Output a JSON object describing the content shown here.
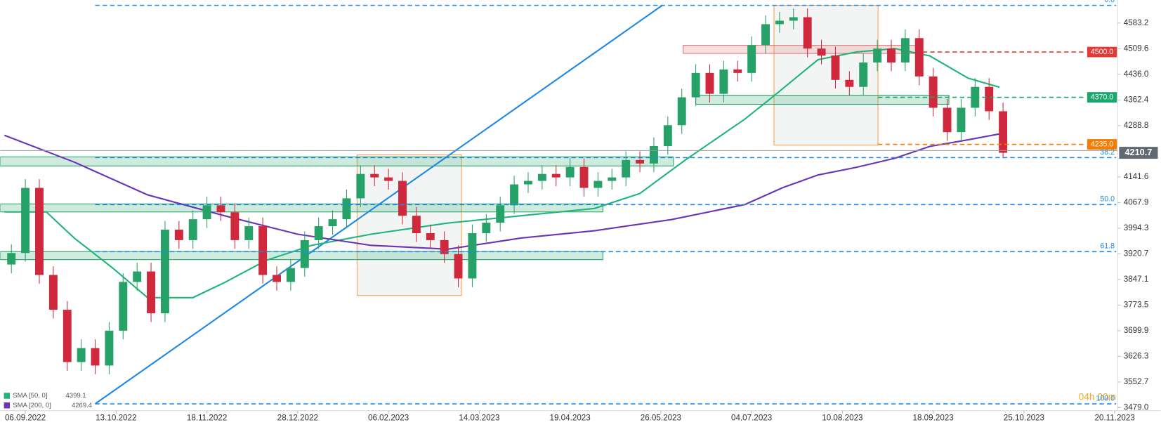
{
  "chart_data": {
    "type": "candlestick",
    "xlim": [
      -7.2,
      312.4
    ],
    "ylim": [
      3470.5,
      4649.4
    ],
    "xticks": [
      {
        "value": 0,
        "label": "06.09.2022"
      },
      {
        "value": 26,
        "label": "13.10.2022"
      },
      {
        "value": 52,
        "label": "18.11.2022"
      },
      {
        "value": 78,
        "label": "28.12.2022"
      },
      {
        "value": 104,
        "label": "06.02.2023"
      },
      {
        "value": 130,
        "label": "14.03.2023"
      },
      {
        "value": 156,
        "label": "19.04.2023"
      },
      {
        "value": 182,
        "label": "26.05.2023"
      },
      {
        "value": 208,
        "label": "04.07.2023"
      },
      {
        "value": 234,
        "label": "10.08.2023"
      },
      {
        "value": 260,
        "label": "18.09.2023"
      },
      {
        "value": 286,
        "label": "25.10.2023"
      },
      {
        "value": 312,
        "label": "20.11.2023"
      }
    ],
    "yticks": [
      4583.2,
      4509.6,
      {
        "value": 4436.0,
        "label": "4436.0"
      },
      4362.4,
      4288.8,
      4141.6,
      4067.9,
      3994.3,
      3920.7,
      3847.1,
      3773.5,
      3699.9,
      3626.3,
      3552.7,
      {
        "value": 3479.0,
        "label": "3479.0"
      }
    ],
    "up_color": "#26a269",
    "down_color": "#d0283c",
    "candles": {
      "x": [
        -4,
        0,
        4,
        8,
        12,
        16,
        20,
        24,
        28,
        32,
        36,
        40,
        44,
        48,
        52,
        56,
        60,
        64,
        68,
        72,
        76,
        80,
        84,
        88,
        92,
        96,
        100,
        104,
        108,
        112,
        116,
        120,
        124,
        128,
        132,
        136,
        140,
        144,
        148,
        152,
        156,
        160,
        164,
        168,
        172,
        176,
        180,
        184,
        188,
        192,
        196,
        200,
        204,
        208,
        212,
        216,
        220,
        224,
        228,
        232,
        236,
        240,
        244,
        248,
        252,
        256,
        260,
        264,
        268,
        272,
        276,
        280
      ],
      "open": [
        3890,
        3923,
        4110,
        3860,
        3760,
        3610,
        3650,
        3600,
        3700,
        3840,
        3870,
        3750,
        3990,
        3960,
        4020,
        4060,
        4040,
        3960,
        4000,
        3860,
        3840,
        3880,
        3960,
        4000,
        4020,
        4080,
        4150,
        4140,
        4130,
        4030,
        3980,
        3960,
        3920,
        3850,
        3980,
        4010,
        4060,
        4120,
        4130,
        4150,
        4140,
        4170,
        4110,
        4130,
        4140,
        4190,
        4180,
        4230,
        4290,
        4370,
        4440,
        4380,
        4450,
        4440,
        4520,
        4580,
        4590,
        4600,
        4510,
        4490,
        4420,
        4400,
        4470,
        4510,
        4470,
        4540,
        4430,
        4340,
        4270,
        4340,
        4400,
        4330
      ],
      "high": [
        3948,
        4135,
        4135,
        3885,
        3785,
        3675,
        3675,
        3725,
        3865,
        3895,
        3895,
        4015,
        4015,
        4045,
        4085,
        4085,
        4065,
        4025,
        4025,
        3885,
        3905,
        3985,
        4025,
        4045,
        4105,
        4175,
        4175,
        4165,
        4155,
        4055,
        4005,
        3985,
        3945,
        4005,
        4035,
        4085,
        4145,
        4155,
        4175,
        4175,
        4195,
        4195,
        4155,
        4165,
        4215,
        4215,
        4255,
        4315,
        4395,
        4465,
        4465,
        4475,
        4475,
        4545,
        4605,
        4615,
        4625,
        4625,
        4535,
        4515,
        4445,
        4495,
        4535,
        4535,
        4565,
        4565,
        4455,
        4365,
        4365,
        4425,
        4425,
        4355
      ],
      "low": [
        3865,
        3898,
        3835,
        3735,
        3585,
        3585,
        3575,
        3575,
        3675,
        3815,
        3725,
        3725,
        3935,
        3935,
        3995,
        4015,
        3935,
        3935,
        3835,
        3815,
        3815,
        3855,
        3935,
        3975,
        3995,
        4055,
        4115,
        4105,
        4005,
        3955,
        3935,
        3895,
        3825,
        3825,
        3955,
        3985,
        4035,
        4095,
        4105,
        4115,
        4115,
        4085,
        4085,
        4105,
        4115,
        4155,
        4155,
        4205,
        4265,
        4345,
        4355,
        4355,
        4415,
        4415,
        4495,
        4555,
        4565,
        4485,
        4465,
        4395,
        4375,
        4375,
        4445,
        4445,
        4445,
        4405,
        4315,
        4245,
        4245,
        4315,
        4305,
        4195
      ],
      "close": [
        3923,
        4110,
        3860,
        3760,
        3610,
        3650,
        3600,
        3700,
        3840,
        3870,
        3750,
        3990,
        3960,
        4020,
        4060,
        4040,
        3960,
        4000,
        3860,
        3840,
        3880,
        3960,
        4000,
        4020,
        4080,
        4150,
        4140,
        4130,
        4030,
        3980,
        3960,
        3920,
        3850,
        3980,
        4010,
        4060,
        4120,
        4130,
        4150,
        4140,
        4170,
        4110,
        4130,
        4140,
        4190,
        4180,
        4230,
        4290,
        4370,
        4440,
        4380,
        4450,
        4440,
        4520,
        4580,
        4590,
        4600,
        4510,
        4490,
        4420,
        4400,
        4470,
        4510,
        4470,
        4540,
        4430,
        4340,
        4270,
        4340,
        4400,
        4330,
        4210.7
      ]
    },
    "series": [
      {
        "name": "SMA [50, 0]",
        "last": 4399.1,
        "color": "#1fb57a",
        "x": [
          -6,
          6,
          14,
          25,
          35,
          48,
          57,
          69,
          82,
          99,
          121,
          142,
          163,
          176,
          189,
          206,
          214,
          227,
          238,
          249,
          259,
          270,
          279
        ],
        "values": [
          4041,
          4041,
          3966,
          3880,
          3795,
          3795,
          3838,
          3902,
          3945,
          3977,
          4009,
          4030,
          4051,
          4094,
          4190,
          4307,
          4371,
          4478,
          4500,
          4510,
          4489,
          4425,
          4399
        ]
      },
      {
        "name": "SMA [200, 0]",
        "last": 4269.4,
        "color": "#6a34b8",
        "x": [
          -6,
          14,
          35,
          57,
          78,
          99,
          121,
          142,
          163,
          185,
          206,
          217,
          227,
          238,
          249,
          259,
          270,
          279
        ],
        "values": [
          4261,
          4184,
          4090,
          4030,
          3977,
          3945,
          3934,
          3966,
          3987,
          4019,
          4062,
          4111,
          4147,
          4169,
          4195,
          4229,
          4248,
          4265
        ]
      }
    ],
    "zones": [
      {
        "x": [
          188.4,
          257
        ],
        "price": [
          4496,
          4519
        ],
        "color": "#e57373"
      },
      {
        "x": [
          192,
          264.5
        ],
        "price": [
          4350,
          4376
        ],
        "color": "#26a269"
      },
      {
        "x": [
          -7.2,
          185.6
        ],
        "price": [
          4173,
          4199
        ],
        "color": "#26a269"
      },
      {
        "x": [
          -7.2,
          165.4
        ],
        "price": [
          4041,
          4064
        ],
        "color": "#26a269"
      },
      {
        "x": [
          -7.2,
          165.4
        ],
        "price": [
          3904,
          3927
        ],
        "color": "#26a269"
      }
    ],
    "boxes": [
      {
        "x": [
          95,
          124.9
        ],
        "price": [
          3801,
          4205
        ]
      },
      {
        "x": [
          214.4,
          244.2
        ],
        "price": [
          4233,
          4634
        ]
      }
    ],
    "trendline": {
      "x": [
        20,
        182.4
      ],
      "price": [
        3490,
        4634
      ],
      "color": "#1e88e5"
    },
    "fibonacci": {
      "price_0": 4634,
      "price_100": 3490,
      "start": 20,
      "color": "#1e88e5",
      "levels": [
        {
          "value": 0,
          "label": "0.0"
        },
        38.2,
        {
          "value": 50,
          "label": "50.0"
        },
        61.8,
        {
          "value": 100,
          "label": "100.0"
        }
      ]
    },
    "levels": [
      {
        "value": 4500,
        "label": "4500.0",
        "start": 257,
        "color": "#e53935"
      },
      {
        "value": 4370,
        "label": "4370.0",
        "start": 244.2,
        "color": "#18a86b"
      },
      {
        "value": 4235,
        "label": "4235.0",
        "start": 244.2,
        "color": "#f57c00"
      }
    ],
    "current_price": 4210.7,
    "timer": "04h 00m"
  }
}
